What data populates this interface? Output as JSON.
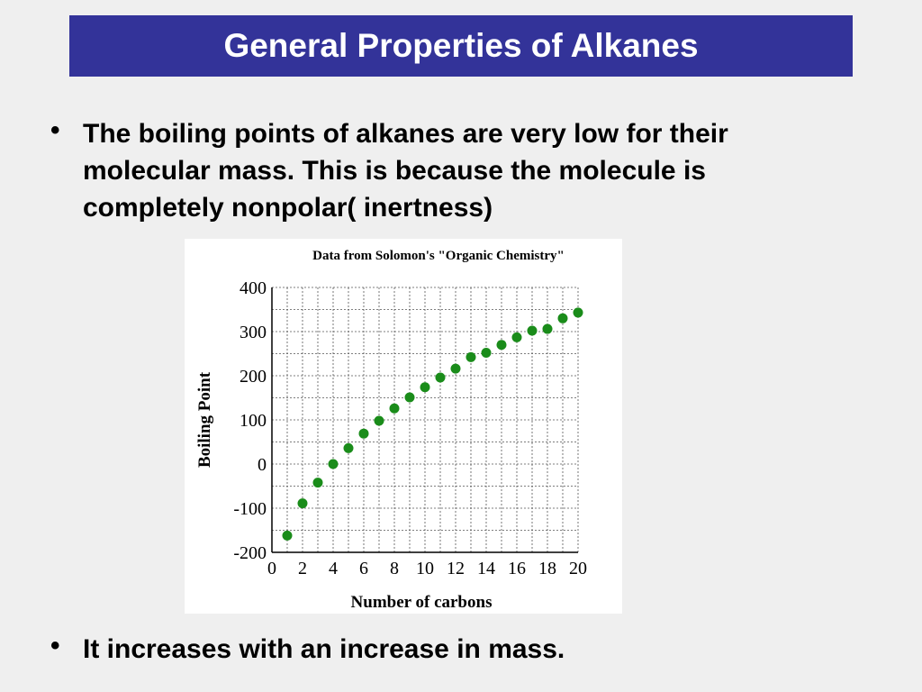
{
  "slide": {
    "title": "General Properties of Alkanes",
    "bullets": [
      "The boiling points of alkanes are very low for their molecular mass. This is because the molecule is completely nonpolar( inertness)",
      "It increases with an increase in mass."
    ],
    "bullet_symbol": "•"
  },
  "colors": {
    "title_bar": "#333399",
    "point": "#1a8c1a"
  },
  "chart_data": {
    "type": "scatter",
    "title": "Data from Solomon's \"Organic Chemistry\"",
    "xlabel": "Number of carbons",
    "ylabel": "Boiling Point",
    "xlim": [
      0,
      20
    ],
    "ylim": [
      -200,
      400
    ],
    "xticks": [
      0,
      2,
      4,
      6,
      8,
      10,
      12,
      14,
      16,
      18,
      20
    ],
    "yticks": [
      400,
      300,
      200,
      100,
      0,
      -100,
      -200
    ],
    "grid": true,
    "x": [
      1,
      2,
      3,
      4,
      5,
      6,
      7,
      8,
      9,
      10,
      11,
      12,
      13,
      14,
      15,
      16,
      17,
      18,
      19,
      20
    ],
    "y": [
      -162,
      -89,
      -42,
      0,
      36,
      69,
      98,
      126,
      151,
      174,
      196,
      216,
      242,
      252,
      270,
      287,
      302,
      306,
      330,
      343
    ]
  }
}
